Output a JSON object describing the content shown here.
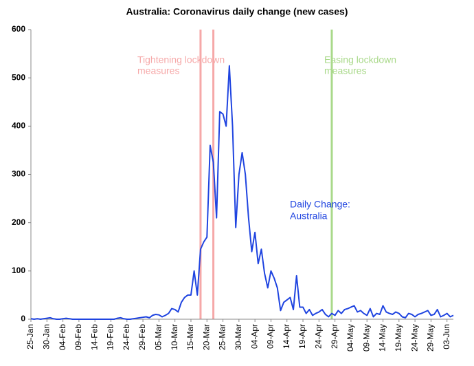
{
  "chart_data": {
    "type": "line",
    "title": "Australia: Coronavirus daily change (new cases)",
    "categories": [
      "25-Jan",
      null,
      null,
      null,
      null,
      "30-Jan",
      null,
      null,
      null,
      null,
      "04-Feb",
      null,
      null,
      null,
      null,
      "09-Feb",
      null,
      null,
      null,
      null,
      "14-Feb",
      null,
      null,
      null,
      null,
      "19-Feb",
      null,
      null,
      null,
      null,
      "24-Feb",
      null,
      null,
      null,
      null,
      "29-Feb",
      null,
      null,
      null,
      null,
      "05-Mar",
      null,
      null,
      null,
      null,
      "10-Mar",
      null,
      null,
      null,
      null,
      "15-Mar",
      null,
      null,
      null,
      null,
      "20-Mar",
      null,
      null,
      null,
      null,
      "25-Mar",
      null,
      null,
      null,
      null,
      "30-Mar",
      null,
      null,
      null,
      null,
      "04-Apr",
      null,
      null,
      null,
      null,
      "09-Apr",
      null,
      null,
      null,
      null,
      "14-Apr",
      null,
      null,
      null,
      null,
      "19-Apr",
      null,
      null,
      null,
      null,
      "24-Apr",
      null,
      null,
      null,
      null,
      "29-Apr",
      null,
      null,
      null,
      null,
      "04-May",
      null,
      null,
      null,
      null,
      "09-May",
      null,
      null,
      null,
      null,
      "14-May",
      null,
      null,
      null,
      null,
      "19-May",
      null,
      null,
      null,
      null,
      "24-May",
      null,
      null,
      null,
      null,
      "29-May",
      null,
      null,
      null,
      null,
      "03-Jun",
      null,
      null
    ],
    "series": [
      {
        "name": [
          "Daily Change:",
          "Australia"
        ],
        "color": "#1f44e0",
        "values": [
          1,
          0,
          1,
          0,
          1,
          2,
          3,
          1,
          0,
          0,
          1,
          2,
          1,
          0,
          0,
          0,
          0,
          0,
          0,
          0,
          0,
          0,
          0,
          0,
          0,
          0,
          0,
          2,
          3,
          1,
          0,
          0,
          1,
          2,
          3,
          4,
          5,
          3,
          8,
          10,
          9,
          5,
          8,
          12,
          22,
          20,
          15,
          35,
          45,
          50,
          50,
          100,
          50,
          145,
          160,
          170,
          360,
          325,
          210,
          430,
          425,
          400,
          525,
          400,
          190,
          300,
          345,
          300,
          210,
          140,
          180,
          115,
          145,
          95,
          65,
          100,
          85,
          65,
          18,
          35,
          40,
          45,
          20,
          90,
          25,
          25,
          12,
          20,
          8,
          12,
          15,
          20,
          10,
          5,
          12,
          8,
          18,
          12,
          20,
          22,
          25,
          28,
          15,
          18,
          12,
          8,
          22,
          5,
          12,
          10,
          28,
          15,
          12,
          10,
          15,
          12,
          5,
          3,
          12,
          10,
          5,
          10,
          12,
          15,
          18,
          8,
          10,
          20,
          5,
          8,
          12,
          5,
          8
        ]
      }
    ],
    "ylim": [
      0,
      600
    ],
    "yticks": [
      0,
      100,
      200,
      300,
      400,
      500,
      600
    ],
    "grid": false,
    "annotations": [
      {
        "text": [
          "Tightening lockdown",
          "measures"
        ],
        "lines": [
          53,
          57
        ],
        "color": "#f6a8a8"
      },
      {
        "text": [
          "Easing lockdown",
          "measures"
        ],
        "lines": [
          94
        ],
        "color": "#a9d98a"
      }
    ]
  }
}
